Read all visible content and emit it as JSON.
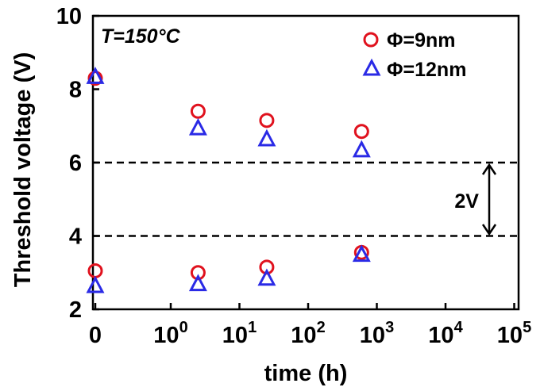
{
  "chart_data": {
    "type": "scatter",
    "xlabel": "time (h)",
    "ylabel": "Threshold voltage (V)",
    "annotation_condition": "T=150°C",
    "ylim": [
      2,
      10
    ],
    "y_ticks": [
      "2",
      "4",
      "6",
      "8",
      "10"
    ],
    "x_scale": "log",
    "x_tick_labels": [
      {
        "base": "0",
        "exp": ""
      },
      {
        "base": "10",
        "exp": "0"
      },
      {
        "base": "10",
        "exp": "1"
      },
      {
        "base": "10",
        "exp": "2"
      },
      {
        "base": "10",
        "exp": "3"
      },
      {
        "base": "10",
        "exp": "4"
      },
      {
        "base": "10",
        "exp": "5"
      }
    ],
    "x_tick_values": [
      0,
      1,
      10,
      100,
      1000,
      10000,
      100000
    ],
    "series": [
      {
        "name": "Φ=9nm",
        "marker": "circle",
        "color": "#e0121e",
        "x": [
          0,
          2.5,
          25,
          600,
          0,
          2.5,
          25,
          600
        ],
        "y": [
          8.3,
          7.4,
          7.15,
          6.85,
          3.05,
          3.0,
          3.15,
          3.55
        ]
      },
      {
        "name": "Φ=12nm",
        "marker": "triangle",
        "color": "#2a2ae6",
        "x": [
          0,
          2.5,
          25,
          600,
          0,
          2.5,
          25,
          600
        ],
        "y": [
          8.35,
          6.95,
          6.65,
          6.35,
          2.65,
          2.7,
          2.85,
          3.5
        ]
      }
    ],
    "reference_lines": [
      6,
      4
    ],
    "window_label": "2V",
    "legend_position": "top-right"
  }
}
